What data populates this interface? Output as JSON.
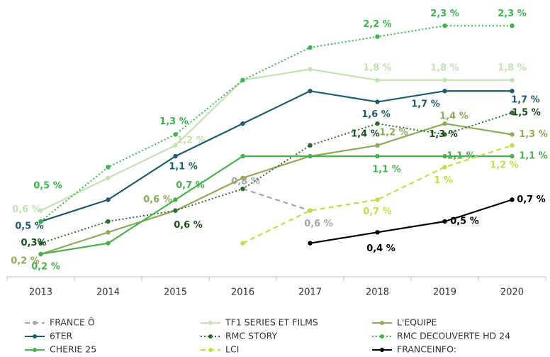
{
  "chart_data": {
    "type": "line",
    "categories": [
      "2013",
      "2014",
      "2015",
      "2016",
      "2017",
      "2018",
      "2019",
      "2020"
    ],
    "ylim": [
      0,
      2.4
    ],
    "legend": "bottom",
    "series": [
      {
        "name": "FRANCE Ô",
        "color": "#a6a6a6",
        "dash": "dashed",
        "values": [
          null,
          null,
          null,
          0.8,
          0.6,
          null,
          null,
          null
        ],
        "value_labels": [
          null,
          null,
          null,
          "0,8 %",
          "0,6 %",
          null,
          null,
          null
        ]
      },
      {
        "name": "TF1 SERIES ET FILMS",
        "color": "#c5e0b4",
        "dash": "solid",
        "values": [
          0.6,
          0.9,
          1.2,
          1.8,
          1.9,
          1.8,
          1.8,
          1.8
        ],
        "value_labels": [
          "0,6 %",
          null,
          "1,2 %",
          null,
          null,
          "1,8 %",
          "1,8 %",
          "1,8 %"
        ]
      },
      {
        "name": "L'EQUIPE",
        "color": "#8faa5a",
        "dash": "solid",
        "values": [
          0.2,
          0.4,
          0.6,
          0.9,
          1.1,
          1.2,
          1.4,
          1.3
        ],
        "value_labels": [
          "0,2 %",
          null,
          "0,6 %",
          null,
          null,
          "1,2 %",
          "1,4 %",
          "1,3 %"
        ]
      },
      {
        "name": "6TER",
        "color": "#1f5c6b",
        "dash": "solid",
        "values": [
          0.5,
          0.7,
          1.1,
          1.4,
          1.7,
          1.6,
          1.7,
          1.7
        ],
        "value_labels": [
          "0,5 %",
          null,
          "1,1 %",
          null,
          null,
          "1,6 %",
          "1,7 %",
          "1,7 %"
        ]
      },
      {
        "name": "RMC STORY",
        "color": "#2e6b2e",
        "dash": "dotted",
        "values": [
          0.3,
          0.5,
          0.6,
          0.8,
          1.2,
          1.4,
          1.3,
          1.5
        ],
        "value_labels": [
          "0,3%",
          null,
          "0,6 %",
          null,
          null,
          "1,4 %",
          "1,3 %",
          "1,5 %"
        ]
      },
      {
        "name": "RMC DECOUVERTE HD 24",
        "color": "#3cb44b",
        "dash": "dotted",
        "values": [
          0.5,
          1.0,
          1.3,
          1.8,
          2.1,
          2.2,
          2.3,
          2.3
        ],
        "value_labels": [
          "0,5 %",
          null,
          "1,3 %",
          null,
          null,
          "2,2 %",
          "2,3 %",
          "2,3 %"
        ]
      },
      {
        "name": "CHERIE 25",
        "color": "#4caf50",
        "dash": "solid",
        "values": [
          0.2,
          0.3,
          0.7,
          1.1,
          1.1,
          1.1,
          1.1,
          1.1
        ],
        "value_labels": [
          "0,2 %",
          null,
          "0,7 %",
          null,
          null,
          "1,1 %",
          "1,1 %",
          "1,1 %"
        ]
      },
      {
        "name": "LCI",
        "color": "#c9d94a",
        "dash": "dashed",
        "values": [
          null,
          null,
          null,
          0.3,
          0.6,
          0.7,
          1.0,
          1.2
        ],
        "value_labels": [
          null,
          null,
          null,
          null,
          null,
          "0,7 %",
          "1 %",
          "1,2 %"
        ]
      },
      {
        "name": "FRANCEINFO:",
        "color": "#000000",
        "dash": "solid",
        "values": [
          null,
          null,
          null,
          null,
          0.3,
          0.4,
          0.5,
          0.7
        ],
        "value_labels": [
          null,
          null,
          null,
          null,
          null,
          "0,4 %",
          "0,5 %",
          "0,7 %"
        ]
      }
    ]
  }
}
